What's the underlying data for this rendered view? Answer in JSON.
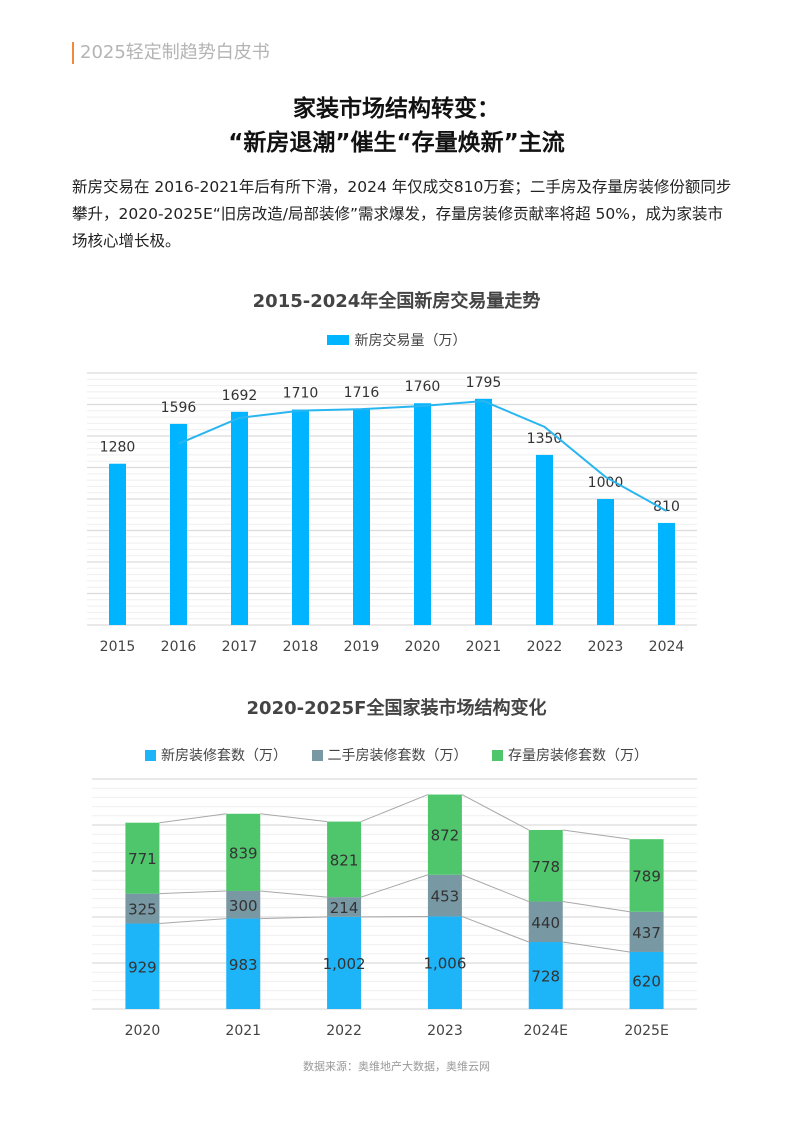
{
  "header": "2025轻定制趋势白皮书",
  "title_line1": "家装市场结构转变：",
  "title_line2": "“新房退潮”催生“存量焕新”主流",
  "intro": "新房交易在 2016-2021年后有所下滑，2024 年仅成交810万套；二手房及存量房装修份额同步攀升，2020-2025E“旧房改造/局部装修”需求爆发，存量房装修贡献率将超 50%，成为家装市场核心增长极。",
  "chart_data": [
    {
      "type": "bar",
      "title": "2015-2024年全国新房交易量走势",
      "categories": [
        "2015",
        "2016",
        "2017",
        "2018",
        "2019",
        "2020",
        "2021",
        "2022",
        "2023",
        "2024"
      ],
      "series": [
        {
          "name": "新房交易量（万）",
          "values": [
            1280,
            1596,
            1692,
            1710,
            1716,
            1760,
            1795,
            1350,
            1000,
            810
          ],
          "color": "#00b4ff"
        }
      ],
      "trendline": "2-period moving average",
      "ylim": [
        0,
        2000
      ],
      "grid": true,
      "legend": "top"
    },
    {
      "type": "stacked-bar",
      "title": "2020-2025F全国家装市场结构变化",
      "categories": [
        "2020",
        "2021",
        "2022",
        "2023",
        "2024E",
        "2025E"
      ],
      "series": [
        {
          "name": "新房装修套数（万）",
          "values": [
            929,
            983,
            1002,
            1006,
            728,
            620
          ],
          "labels": [
            "929",
            "983",
            "1,002",
            "1,006",
            "728",
            "620"
          ],
          "color": "#1eb4f8"
        },
        {
          "name": "二手房装修套数（万）",
          "values": [
            325,
            300,
            214,
            453,
            440,
            437
          ],
          "labels": [
            "325",
            "300",
            "214",
            "453",
            "440",
            "437"
          ],
          "color": "#7898a4"
        },
        {
          "name": "存量房装修套数（万）",
          "values": [
            771,
            839,
            821,
            872,
            778,
            789
          ],
          "labels": [
            "771",
            "839",
            "821",
            "872",
            "778",
            "789"
          ],
          "color": "#4fc66c"
        }
      ],
      "ylim": [
        0,
        2500
      ],
      "grid": true,
      "legend": "top"
    }
  ],
  "source": "数据来源：奥维地产大数据，奥维云网"
}
